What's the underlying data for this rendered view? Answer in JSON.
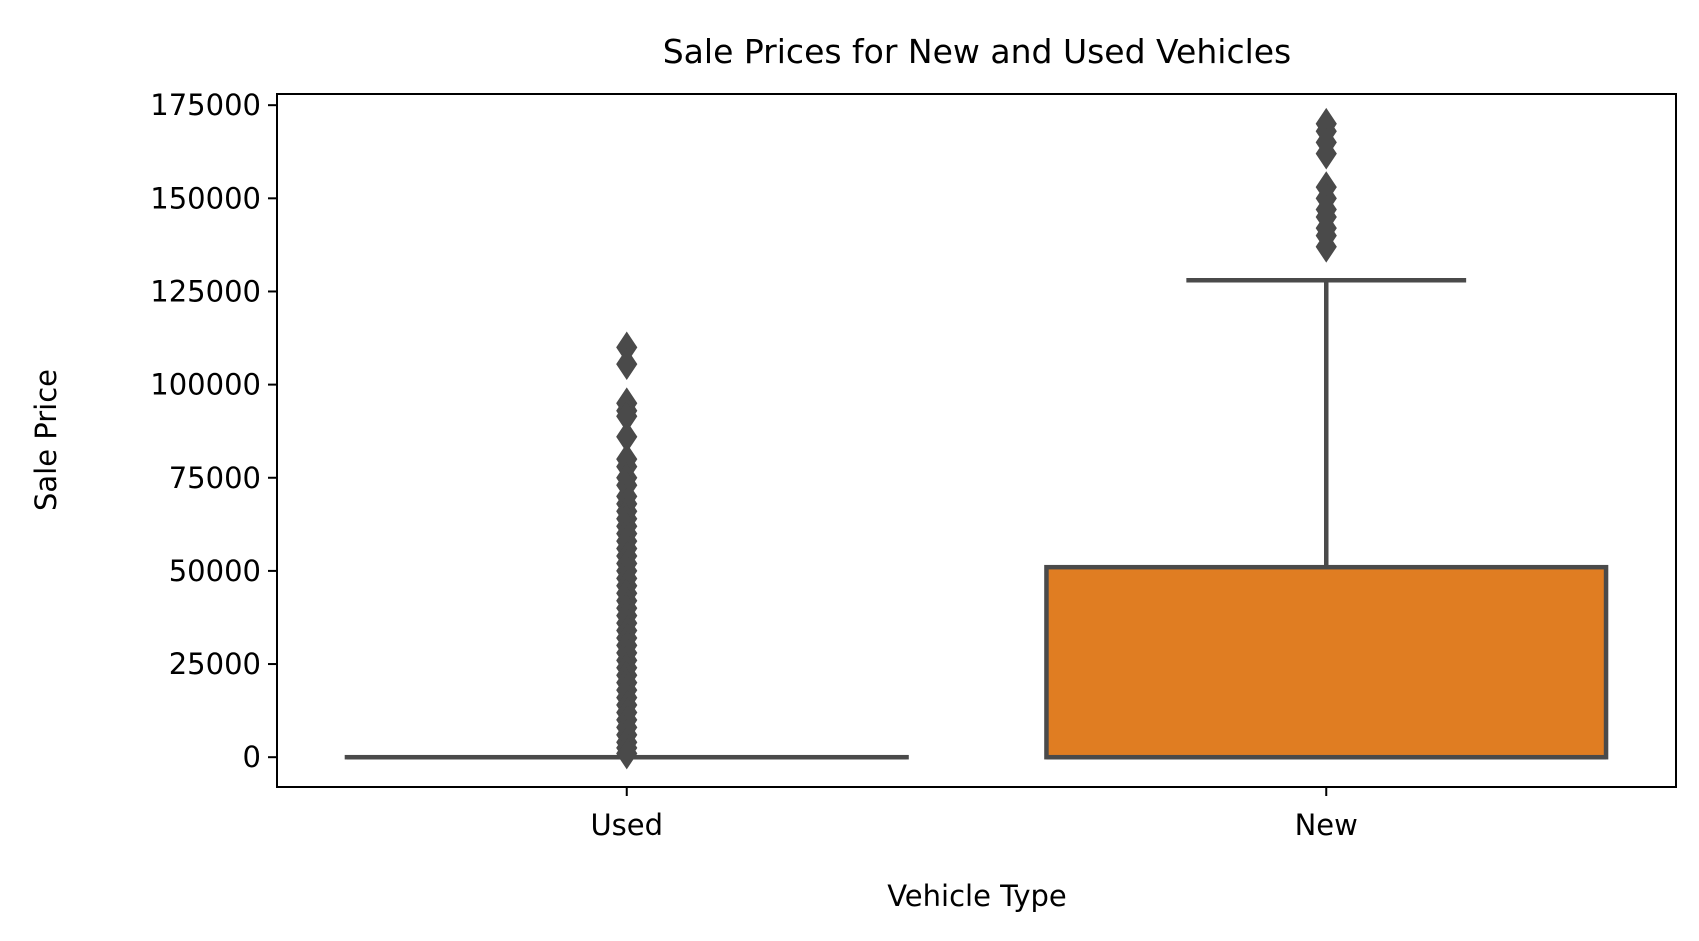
{
  "chart_data": {
    "type": "box",
    "title": "Sale Prices for New and Used Vehicles",
    "xlabel": "Vehicle Type",
    "ylabel": "Sale Price",
    "ylim": [
      -8000,
      178000
    ],
    "yticks": [
      0,
      25000,
      50000,
      75000,
      100000,
      125000,
      150000,
      175000
    ],
    "grid": false,
    "categories": [
      "Used",
      "New"
    ],
    "boxes": [
      {
        "category": "Used",
        "color": "#3b75af",
        "whisker_low": 0,
        "q1": 0,
        "median": 0,
        "q3": 0,
        "whisker_high": 0,
        "outliers": [
          110000,
          105500,
          95000,
          93000,
          91500,
          86000,
          80000,
          78000,
          75000,
          73000,
          70000,
          68000,
          66000,
          64000,
          62000,
          60000,
          58000,
          56000,
          54000,
          52000,
          50000,
          48000,
          46000,
          44000,
          42000,
          40000,
          38000,
          36000,
          34000,
          32000,
          30000,
          28000,
          26000,
          24000,
          22000,
          20000,
          18000,
          16000,
          14000,
          12000,
          10000,
          8000,
          6000,
          4000,
          2500,
          1000
        ]
      },
      {
        "category": "New",
        "color": "#e07d22",
        "whisker_low": 0,
        "q1": 0,
        "median": 0,
        "q3": 51000,
        "whisker_high": 128000,
        "outliers": [
          170000,
          168000,
          165000,
          162000,
          153000,
          150000,
          147000,
          145000,
          142000,
          140000,
          137000
        ]
      }
    ]
  }
}
